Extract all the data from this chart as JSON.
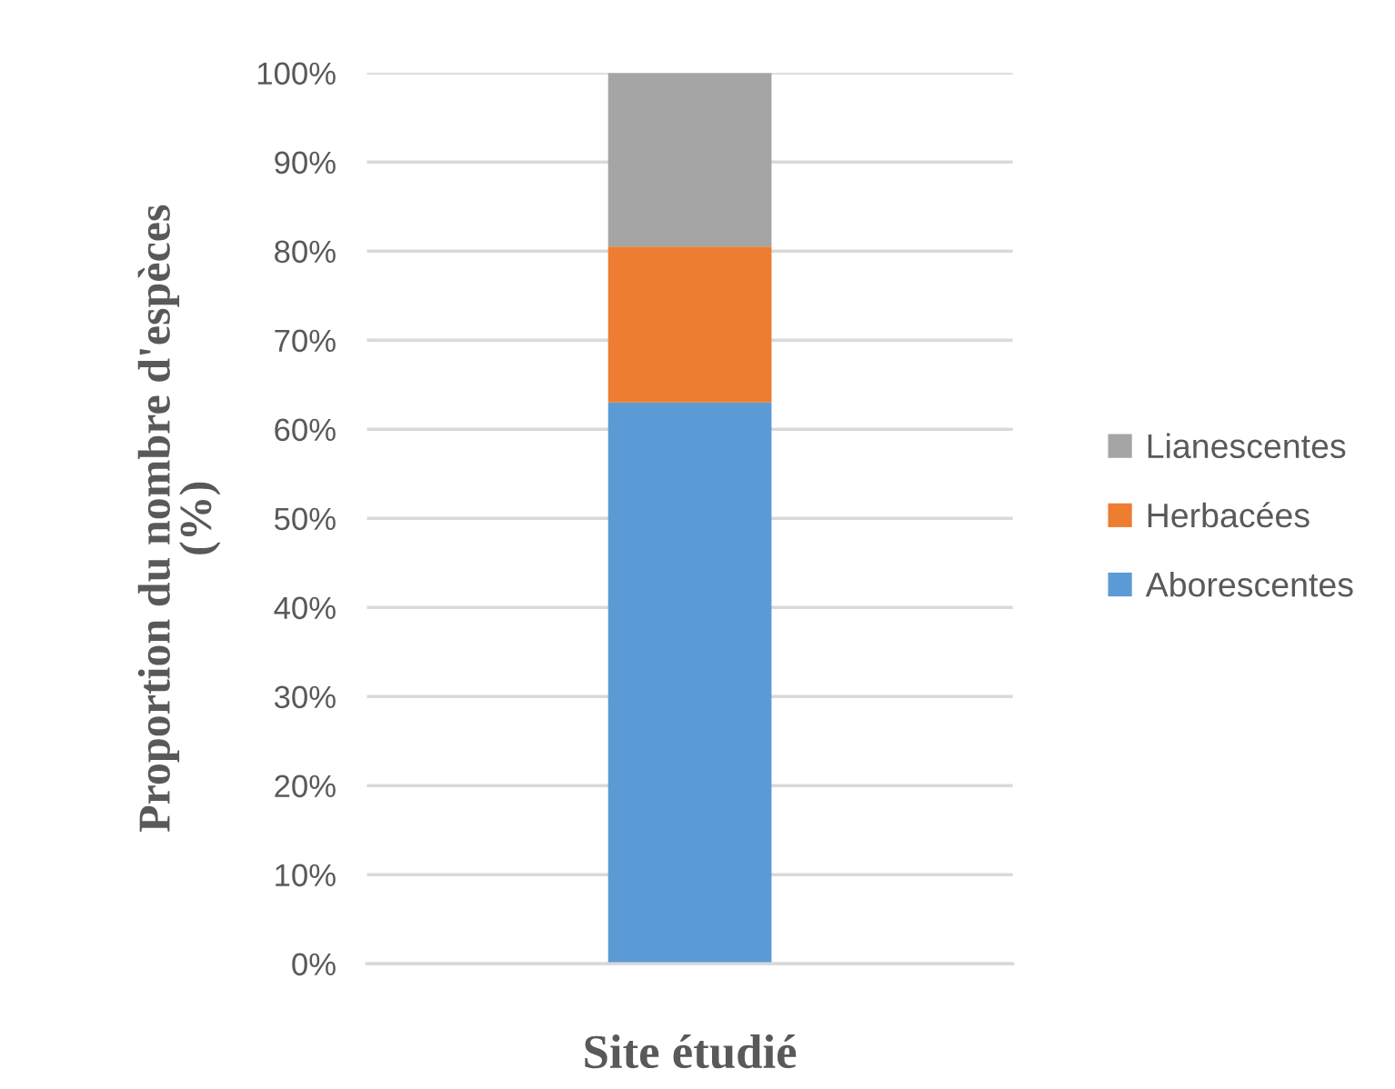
{
  "chart_data": {
    "type": "bar",
    "stacked": true,
    "xlabel": "Site étudié",
    "ylabel": "Proportion du nombre d'espèces (%)",
    "categories": [
      null
    ],
    "series": [
      {
        "name": "Aborescentes",
        "color": "#5b9bd5",
        "values": [
          63
        ]
      },
      {
        "name": "Herbacées",
        "color": "#ed7d31",
        "values": [
          17.5
        ]
      },
      {
        "name": "Lianescentes",
        "color": "#a5a5a5",
        "values": [
          19.5
        ]
      }
    ],
    "ylim": [
      0,
      100
    ],
    "yticks": [
      {
        "value": 0,
        "label": "0%"
      },
      {
        "value": 10,
        "label": "10%"
      },
      {
        "value": 20,
        "label": "20%"
      },
      {
        "value": 30,
        "label": "30%"
      },
      {
        "value": 40,
        "label": "40%"
      },
      {
        "value": 50,
        "label": "50%"
      },
      {
        "value": 60,
        "label": "60%"
      },
      {
        "value": 70,
        "label": "70%"
      },
      {
        "value": 80,
        "label": "80%"
      },
      {
        "value": 90,
        "label": "90%"
      },
      {
        "value": 100,
        "label": "100%"
      }
    ],
    "grid": "y",
    "legend": "right"
  }
}
